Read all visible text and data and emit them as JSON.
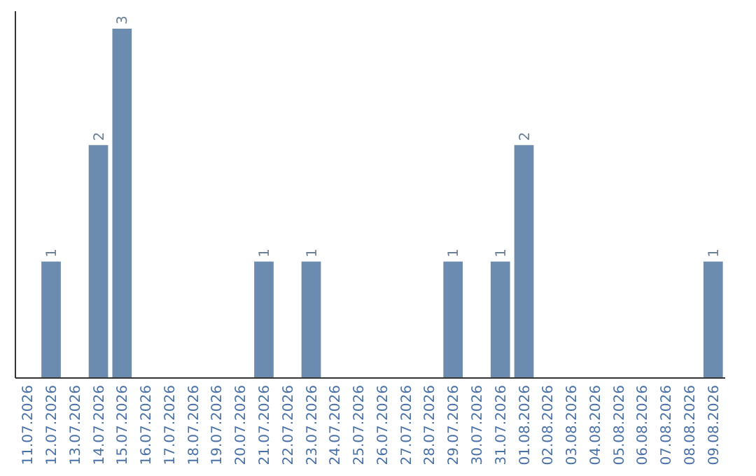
{
  "chart_data": {
    "type": "bar",
    "categories": [
      "11.07.2026",
      "12.07.2026",
      "13.07.2026",
      "14.07.2026",
      "15.07.2026",
      "16.07.2026",
      "17.07.2026",
      "18.07.2026",
      "19.07.2026",
      "20.07.2026",
      "21.07.2026",
      "22.07.2026",
      "23.07.2026",
      "24.07.2026",
      "25.07.2026",
      "26.07.2026",
      "27.07.2026",
      "28.07.2026",
      "29.07.2026",
      "30.07.2026",
      "31.07.2026",
      "01.08.2026",
      "02.08.2026",
      "03.08.2026",
      "04.08.2026",
      "05.08.2026",
      "06.08.2026",
      "07.08.2026",
      "08.08.2026",
      "09.08.2026"
    ],
    "values": [
      0,
      1,
      0,
      2,
      3,
      0,
      0,
      0,
      0,
      0,
      1,
      0,
      1,
      0,
      0,
      0,
      0,
      0,
      1,
      0,
      1,
      2,
      0,
      0,
      0,
      0,
      0,
      0,
      0,
      1
    ],
    "value_labels": [
      null,
      "1",
      null,
      "2",
      "3",
      null,
      null,
      null,
      null,
      null,
      "1",
      null,
      "1",
      null,
      null,
      null,
      null,
      null,
      "1",
      null,
      "1",
      "2",
      null,
      null,
      null,
      null,
      null,
      null,
      null,
      "1"
    ],
    "color": "#6b8cae",
    "grid": false,
    "tick_labels": "x"
  }
}
